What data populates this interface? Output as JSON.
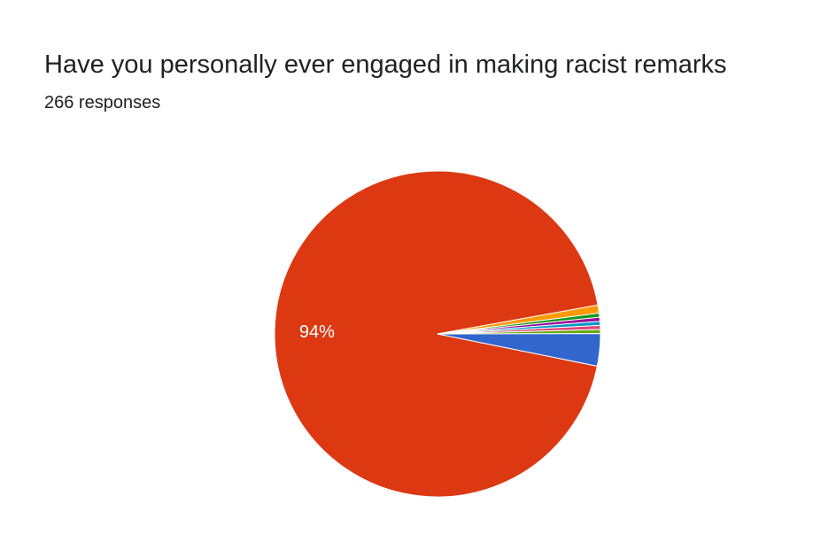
{
  "chart_data": {
    "type": "pie",
    "title": "Have you personally ever engaged in making racist remarks",
    "subtitle": "266 responses",
    "categories": [
      null,
      null,
      null,
      null,
      null,
      null,
      null,
      null
    ],
    "values": [
      94,
      0.8,
      0.4,
      0.4,
      0.4,
      0.4,
      0.4,
      3.2
    ],
    "value_labels": [
      "94%",
      null,
      null,
      null,
      null,
      null,
      null,
      null
    ],
    "colors": [
      "#dc3912",
      "#ff9900",
      "#109618",
      "#990099",
      "#0099c6",
      "#dd4477",
      "#66aa00",
      "#3366cc"
    ]
  }
}
